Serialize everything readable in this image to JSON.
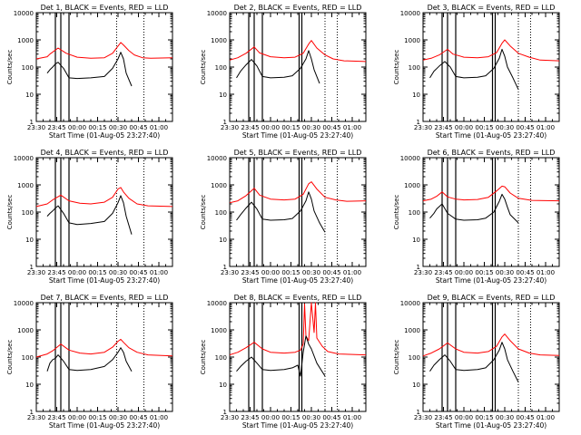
{
  "figure": {
    "x_axis_title": "Start Time (01-Aug-05 23:27:40)",
    "y_axis_title": "Counts/sec",
    "colors": {
      "events": "#000000",
      "lld": "#ff0000",
      "axis": "#000000",
      "background": "#ffffff"
    }
  },
  "chart_data": [
    {
      "type": "line",
      "title": "Det 1, BLACK = Events, RED = LLD",
      "x_tick_labels": [
        "23:30",
        "23:45",
        "00:00",
        "00:15",
        "00:30",
        "00:45",
        "01:00"
      ],
      "y_tick_labels": [
        "1",
        "10",
        "100",
        "1000",
        "10000"
      ],
      "y_scale": "log",
      "ylim": [
        1,
        10000
      ],
      "xlim_minutes_from_2330": [
        0,
        100
      ],
      "vlines_solid": [
        14,
        18,
        24
      ],
      "vlines_dotted": [
        59,
        79
      ],
      "series": [
        {
          "name": "LLD",
          "color": "#ff0000",
          "x": [
            0,
            8,
            10,
            16,
            22,
            30,
            40,
            50,
            56,
            62,
            64,
            68,
            72,
            78,
            84,
            100
          ],
          "y": [
            200,
            240,
            300,
            500,
            320,
            230,
            210,
            220,
            320,
            800,
            650,
            400,
            280,
            220,
            210,
            220
          ]
        },
        {
          "name": "Events",
          "color": "#000000",
          "x": [
            8,
            10,
            12,
            14,
            16,
            20,
            24,
            30,
            40,
            50,
            56,
            60,
            62,
            64,
            66,
            70
          ],
          "y": [
            60,
            80,
            100,
            130,
            150,
            90,
            40,
            38,
            40,
            45,
            90,
            200,
            350,
            200,
            60,
            20
          ]
        }
      ]
    },
    {
      "type": "line",
      "title": "Det 2, BLACK = Events, RED = LLD",
      "x_tick_labels": [
        "23:30",
        "23:45",
        "00:00",
        "00:15",
        "00:30",
        "00:45",
        "01:00"
      ],
      "y_tick_labels": [
        "1",
        "10",
        "100",
        "1000",
        "10000"
      ],
      "y_scale": "log",
      "ylim": [
        1,
        10000
      ],
      "xlim_minutes_from_2330": [
        0,
        100
      ],
      "vlines_solid": [
        14,
        18,
        24,
        51,
        53
      ],
      "vlines_dotted": [
        70,
        79
      ],
      "series": [
        {
          "name": "LLD",
          "color": "#ff0000",
          "x": [
            0,
            6,
            12,
            18,
            22,
            30,
            40,
            48,
            54,
            58,
            60,
            64,
            70,
            76,
            84,
            100
          ],
          "y": [
            180,
            220,
            320,
            550,
            330,
            240,
            220,
            230,
            320,
            700,
            950,
            500,
            280,
            200,
            170,
            160
          ]
        },
        {
          "name": "Events",
          "color": "#000000",
          "x": [
            5,
            8,
            12,
            16,
            20,
            24,
            30,
            40,
            46,
            52,
            56,
            58,
            60,
            62,
            66
          ],
          "y": [
            40,
            70,
            120,
            190,
            110,
            45,
            40,
            42,
            48,
            90,
            200,
            400,
            200,
            80,
            25
          ]
        }
      ]
    },
    {
      "type": "line",
      "title": "Det 3, BLACK = Events, RED = LLD",
      "x_tick_labels": [
        "23:30",
        "23:45",
        "00:00",
        "00:15",
        "00:30",
        "00:45",
        "01:00"
      ],
      "y_tick_labels": [
        "1",
        "10",
        "100",
        "1000",
        "10000"
      ],
      "y_scale": "log",
      "ylim": [
        1,
        10000
      ],
      "xlim_minutes_from_2330": [
        0,
        100
      ],
      "vlines_solid": [
        14,
        18,
        24,
        51,
        53
      ],
      "vlines_dotted": [
        70,
        79
      ],
      "series": [
        {
          "name": "LLD",
          "color": "#ff0000",
          "x": [
            0,
            6,
            12,
            18,
            22,
            30,
            40,
            48,
            54,
            58,
            60,
            64,
            70,
            78,
            86,
            100
          ],
          "y": [
            180,
            210,
            280,
            450,
            300,
            230,
            220,
            240,
            340,
            750,
            1000,
            600,
            320,
            230,
            180,
            170
          ]
        },
        {
          "name": "Events",
          "color": "#000000",
          "x": [
            5,
            8,
            12,
            16,
            20,
            24,
            30,
            40,
            46,
            52,
            56,
            58,
            60,
            62,
            66,
            70
          ],
          "y": [
            40,
            70,
            110,
            160,
            100,
            45,
            40,
            42,
            48,
            90,
            210,
            450,
            250,
            100,
            40,
            15
          ]
        }
      ]
    },
    {
      "type": "line",
      "title": "Det 4, BLACK = Events, RED = LLD",
      "x_tick_labels": [
        "23:30",
        "23:45",
        "00:00",
        "00:15",
        "00:30",
        "00:45",
        "01:00"
      ],
      "y_tick_labels": [
        "1",
        "10",
        "100",
        "1000",
        "10000"
      ],
      "y_scale": "log",
      "ylim": [
        1,
        10000
      ],
      "xlim_minutes_from_2330": [
        0,
        100
      ],
      "vlines_solid": [
        14,
        18,
        24
      ],
      "vlines_dotted": [
        59,
        79
      ],
      "series": [
        {
          "name": "LLD",
          "color": "#ff0000",
          "x": [
            0,
            8,
            12,
            18,
            24,
            32,
            40,
            50,
            56,
            60,
            62,
            64,
            68,
            74,
            82,
            100
          ],
          "y": [
            160,
            200,
            280,
            420,
            260,
            210,
            200,
            230,
            350,
            700,
            800,
            550,
            320,
            200,
            170,
            160
          ]
        },
        {
          "name": "Events",
          "color": "#000000",
          "x": [
            8,
            10,
            12,
            14,
            16,
            20,
            24,
            30,
            40,
            50,
            56,
            60,
            62,
            64,
            66,
            70
          ],
          "y": [
            70,
            90,
            110,
            140,
            170,
            90,
            40,
            35,
            38,
            45,
            90,
            220,
            400,
            220,
            70,
            15
          ]
        }
      ]
    },
    {
      "type": "line",
      "title": "Det 5, BLACK = Events, RED = LLD",
      "x_tick_labels": [
        "23:30",
        "23:45",
        "00:00",
        "00:15",
        "00:30",
        "00:45",
        "01:00"
      ],
      "y_tick_labels": [
        "1",
        "10",
        "100",
        "1000",
        "10000"
      ],
      "y_scale": "log",
      "ylim": [
        1,
        10000
      ],
      "xlim_minutes_from_2330": [
        0,
        100
      ],
      "vlines_solid": [
        14,
        18,
        24,
        51,
        53
      ],
      "vlines_dotted": [
        70,
        79
      ],
      "series": [
        {
          "name": "LLD",
          "color": "#ff0000",
          "x": [
            0,
            6,
            12,
            18,
            22,
            30,
            40,
            48,
            54,
            58,
            60,
            64,
            70,
            78,
            86,
            100
          ],
          "y": [
            220,
            260,
            400,
            750,
            420,
            300,
            280,
            300,
            450,
            1100,
            1300,
            700,
            350,
            280,
            250,
            260
          ]
        },
        {
          "name": "Events",
          "color": "#000000",
          "x": [
            5,
            8,
            12,
            16,
            20,
            24,
            30,
            40,
            46,
            52,
            56,
            58,
            60,
            62,
            66,
            70
          ],
          "y": [
            50,
            80,
            140,
            230,
            130,
            55,
            50,
            52,
            58,
            110,
            260,
            550,
            300,
            110,
            40,
            18
          ]
        }
      ]
    },
    {
      "type": "line",
      "title": "Det 6, BLACK = Events, RED = LLD",
      "x_tick_labels": [
        "23:30",
        "23:45",
        "00:00",
        "00:15",
        "00:30",
        "00:45",
        "01:00"
      ],
      "y_tick_labels": [
        "1",
        "10",
        "100",
        "1000",
        "10000"
      ],
      "y_scale": "log",
      "ylim": [
        1,
        10000
      ],
      "xlim_minutes_from_2330": [
        0,
        100
      ],
      "vlines_solid": [
        14,
        18,
        24,
        51,
        53
      ],
      "vlines_dotted": [
        70,
        79
      ],
      "series": [
        {
          "name": "LLD",
          "color": "#ff0000",
          "x": [
            0,
            6,
            10,
            14,
            18,
            24,
            30,
            40,
            48,
            54,
            58,
            60,
            64,
            70,
            80,
            100
          ],
          "y": [
            260,
            300,
            380,
            550,
            360,
            300,
            280,
            290,
            350,
            600,
            900,
            850,
            500,
            320,
            270,
            260
          ]
        },
        {
          "name": "Events",
          "color": "#000000",
          "x": [
            5,
            8,
            10,
            14,
            18,
            24,
            30,
            40,
            46,
            52,
            56,
            58,
            60,
            62,
            64,
            70
          ],
          "y": [
            60,
            90,
            130,
            200,
            90,
            55,
            50,
            52,
            60,
            100,
            250,
            450,
            300,
            150,
            80,
            40
          ]
        }
      ]
    },
    {
      "type": "line",
      "title": "Det 7, BLACK = Events, RED = LLD",
      "x_tick_labels": [
        "23:30",
        "23:45",
        "00:00",
        "00:15",
        "00:30",
        "00:45",
        "01:00"
      ],
      "y_tick_labels": [
        "1",
        "10",
        "100",
        "1000",
        "10000"
      ],
      "y_scale": "log",
      "ylim": [
        1,
        10000
      ],
      "xlim_minutes_from_2330": [
        0,
        100
      ],
      "vlines_solid": [
        14,
        18,
        24
      ],
      "vlines_dotted": [
        59,
        79
      ],
      "series": [
        {
          "name": "LLD",
          "color": "#ff0000",
          "x": [
            0,
            8,
            12,
            18,
            24,
            32,
            40,
            50,
            56,
            60,
            62,
            64,
            68,
            74,
            82,
            100
          ],
          "y": [
            100,
            130,
            170,
            300,
            180,
            140,
            130,
            150,
            230,
            380,
            450,
            350,
            220,
            150,
            120,
            110
          ]
        },
        {
          "name": "Events",
          "color": "#000000",
          "x": [
            8,
            10,
            12,
            14,
            16,
            20,
            24,
            30,
            40,
            50,
            56,
            60,
            62,
            64,
            66,
            70
          ],
          "y": [
            30,
            60,
            80,
            90,
            120,
            70,
            35,
            32,
            35,
            45,
            80,
            150,
            220,
            150,
            70,
            30
          ]
        }
      ]
    },
    {
      "type": "line",
      "title": "Det 8, BLACK = Events, RED = LLD",
      "x_tick_labels": [
        "23:30",
        "23:45",
        "00:00",
        "00:15",
        "00:30",
        "00:45",
        "01:00"
      ],
      "y_tick_labels": [
        "1",
        "10",
        "100",
        "1000",
        "10000"
      ],
      "y_scale": "log",
      "ylim": [
        1,
        10000
      ],
      "xlim_minutes_from_2330": [
        0,
        100
      ],
      "vlines_solid": [
        14,
        18,
        24,
        51,
        53
      ],
      "vlines_dotted": [
        70,
        79
      ],
      "series": [
        {
          "name": "LLD",
          "color": "#ff0000",
          "x": [
            0,
            6,
            12,
            18,
            24,
            30,
            40,
            48,
            52,
            54,
            55,
            56,
            58,
            60,
            62,
            63,
            64,
            68,
            72,
            80,
            100
          ],
          "y": [
            120,
            150,
            220,
            350,
            200,
            150,
            140,
            150,
            180,
            300,
            9000,
            600,
            400,
            10000,
            800,
            10000,
            500,
            250,
            160,
            130,
            120
          ]
        },
        {
          "name": "Events",
          "color": "#000000",
          "x": [
            5,
            8,
            12,
            16,
            20,
            24,
            30,
            40,
            46,
            50,
            52,
            54,
            56,
            58,
            60,
            64,
            70
          ],
          "y": [
            30,
            45,
            70,
            100,
            60,
            35,
            32,
            35,
            40,
            50,
            20,
            150,
            600,
            300,
            200,
            60,
            20
          ]
        }
      ]
    },
    {
      "type": "line",
      "title": "Det 9, BLACK = Events, RED = LLD",
      "x_tick_labels": [
        "23:30",
        "23:45",
        "00:00",
        "00:15",
        "00:30",
        "00:45",
        "01:00"
      ],
      "y_tick_labels": [
        "1",
        "10",
        "100",
        "1000",
        "10000"
      ],
      "y_scale": "log",
      "ylim": [
        1,
        10000
      ],
      "xlim_minutes_from_2330": [
        0,
        100
      ],
      "vlines_solid": [
        14,
        18,
        24,
        51,
        53
      ],
      "vlines_dotted": [
        70,
        79
      ],
      "series": [
        {
          "name": "LLD",
          "color": "#ff0000",
          "x": [
            0,
            6,
            12,
            18,
            24,
            30,
            40,
            48,
            54,
            58,
            60,
            64,
            70,
            78,
            86,
            100
          ],
          "y": [
            110,
            140,
            200,
            330,
            200,
            150,
            140,
            160,
            250,
            550,
            700,
            400,
            200,
            140,
            120,
            115
          ]
        },
        {
          "name": "Events",
          "color": "#000000",
          "x": [
            5,
            8,
            12,
            16,
            20,
            24,
            30,
            40,
            46,
            52,
            56,
            58,
            60,
            62,
            66,
            70
          ],
          "y": [
            30,
            50,
            80,
            120,
            70,
            35,
            32,
            35,
            40,
            80,
            180,
            350,
            200,
            80,
            30,
            12
          ]
        }
      ]
    }
  ]
}
